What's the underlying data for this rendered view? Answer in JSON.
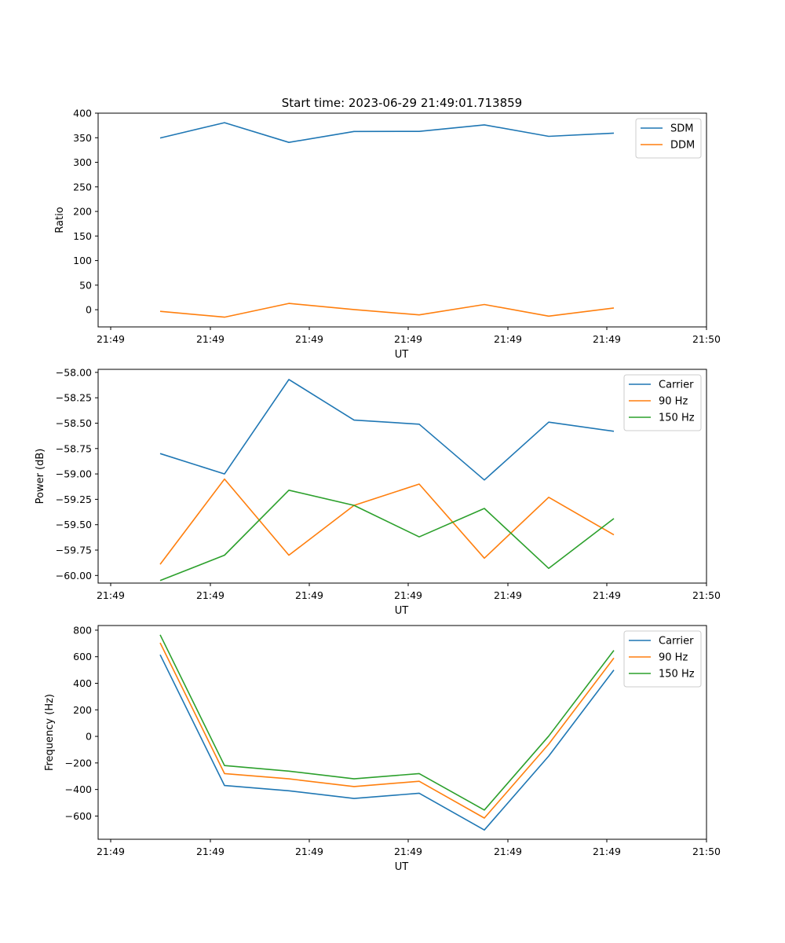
{
  "figure": {
    "title": "Start time: 2023-06-29 21:49:01.713859"
  },
  "colors": {
    "blue": "#1f77b4",
    "orange": "#ff7f0e",
    "green": "#2ca02c"
  },
  "chart_data": [
    {
      "type": "line",
      "title": "Start time: 2023-06-29 21:49:01.713859",
      "xlabel": "UT",
      "ylabel": "Ratio",
      "x_ticks": [
        "21:49",
        "21:49",
        "21:49",
        "21:49",
        "21:49",
        "21:49",
        "21:50"
      ],
      "y_ticks": [
        "0",
        "50",
        "100",
        "150",
        "200",
        "250",
        "300",
        "350",
        "400"
      ],
      "ylim": [
        -35,
        400
      ],
      "legend": "top-right",
      "grid": false,
      "series": [
        {
          "name": "SDM",
          "color": "#1f77b4",
          "values": [
            349.5,
            380.7,
            340.5,
            362.8,
            362.9,
            376.2,
            352.8,
            359.3
          ]
        },
        {
          "name": "DDM",
          "color": "#ff7f0e",
          "values": [
            -3.3,
            -15.2,
            12.8,
            0.3,
            -10.6,
            10.6,
            -13.1,
            3.5
          ]
        }
      ]
    },
    {
      "type": "line",
      "xlabel": "UT",
      "ylabel": "Power (dB)",
      "x_ticks": [
        "21:49",
        "21:49",
        "21:49",
        "21:49",
        "21:49",
        "21:49",
        "21:50"
      ],
      "y_ticks": [
        "−60.00",
        "−59.75",
        "−59.50",
        "−59.25",
        "−59.00",
        "−58.75",
        "−58.50",
        "−58.25",
        "−58.00"
      ],
      "ylim": [
        -60.075,
        -57.97
      ],
      "legend": "top-right",
      "grid": false,
      "series": [
        {
          "name": "Carrier",
          "color": "#1f77b4",
          "values": [
            -58.8,
            -59.0,
            -58.07,
            -58.47,
            -58.51,
            -59.06,
            -58.49,
            -58.58
          ]
        },
        {
          "name": "90 Hz",
          "color": "#ff7f0e",
          "values": [
            -59.89,
            -59.05,
            -59.8,
            -59.31,
            -59.1,
            -59.83,
            -59.23,
            -59.6
          ]
        },
        {
          "name": "150 Hz",
          "color": "#2ca02c",
          "values": [
            -60.05,
            -59.8,
            -59.16,
            -59.31,
            -59.62,
            -59.34,
            -59.93,
            -59.44
          ]
        }
      ]
    },
    {
      "type": "line",
      "xlabel": "UT",
      "ylabel": "Frequency (Hz)",
      "x_ticks": [
        "21:49",
        "21:49",
        "21:49",
        "21:49",
        "21:49",
        "21:49",
        "21:50"
      ],
      "y_ticks": [
        "−600",
        "−400",
        "−200",
        "0",
        "200",
        "400",
        "600",
        "800"
      ],
      "ylim": [
        -775,
        835
      ],
      "legend": "top-right",
      "grid": false,
      "series": [
        {
          "name": "Carrier",
          "color": "#1f77b4",
          "values": [
            615,
            -370,
            -410,
            -468,
            -428,
            -705,
            -148,
            500
          ]
        },
        {
          "name": "90 Hz",
          "color": "#ff7f0e",
          "values": [
            705,
            -280,
            -320,
            -378,
            -338,
            -615,
            -58,
            590
          ]
        },
        {
          "name": "150 Hz",
          "color": "#2ca02c",
          "values": [
            765,
            -220,
            -262,
            -320,
            -280,
            -555,
            2,
            648
          ]
        }
      ]
    }
  ]
}
